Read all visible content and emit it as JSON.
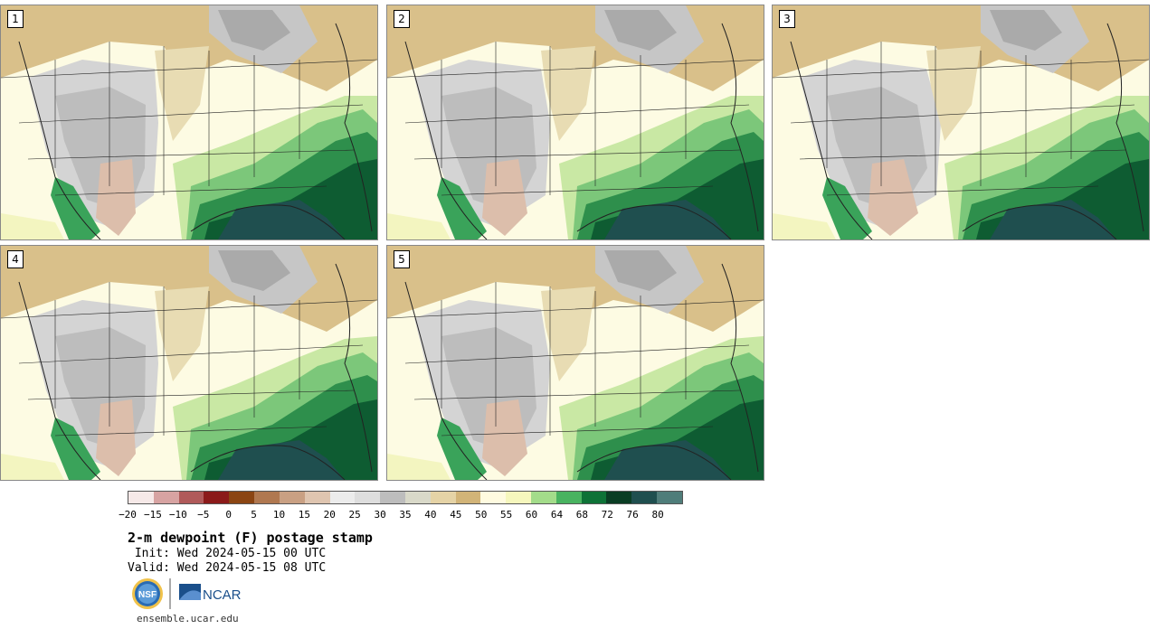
{
  "panels": [
    {
      "number": "1",
      "variant": 0
    },
    {
      "number": "2",
      "variant": 1
    },
    {
      "number": "3",
      "variant": 2
    },
    {
      "number": "4",
      "variant": 3
    },
    {
      "number": "5",
      "variant": 4
    }
  ],
  "colorbar": {
    "colors": [
      "#f6e9e8",
      "#d7a3a2",
      "#b05a5a",
      "#8b1a1a",
      "#8b4513",
      "#b07850",
      "#c9a083",
      "#dfc5b0",
      "#ececec",
      "#dedede",
      "#bdbdbd",
      "#d9d9c9",
      "#e5d3a6",
      "#d2b478",
      "#fffbe0",
      "#f6f7bd",
      "#a3dc8a",
      "#49b360",
      "#0e7237",
      "#0a3d24",
      "#1f4f4f",
      "#4f7d7a"
    ],
    "tick_labels": [
      "−20",
      "−15",
      "−10",
      "−5",
      "0",
      "5",
      "10",
      "15",
      "20",
      "25",
      "30",
      "35",
      "40",
      "45",
      "50",
      "55",
      "60",
      "64",
      "68",
      "72",
      "76",
      "80"
    ]
  },
  "title": "2-m dewpoint (F) postage stamp",
  "init_line": " Init: Wed 2024-05-15 00 UTC",
  "valid_line": "Valid: Wed 2024-05-15 08 UTC",
  "logos": {
    "nsf": "NSF",
    "ncar": "NCAR"
  },
  "url": "ensemble.ucar.edu"
}
